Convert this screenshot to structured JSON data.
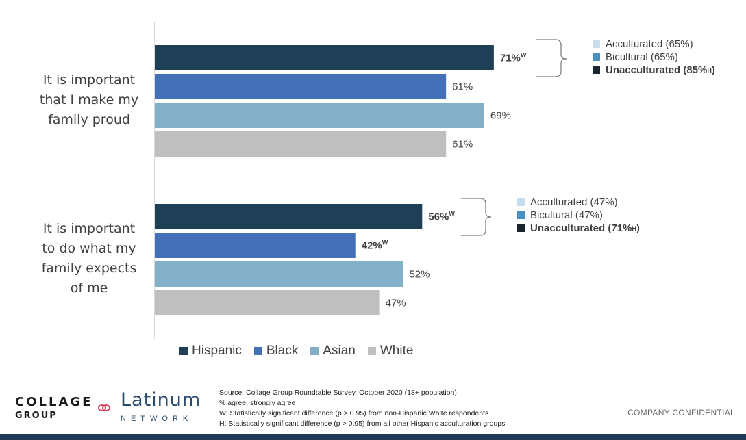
{
  "chart_data": {
    "type": "bar",
    "orientation": "horizontal",
    "categories": [
      "It is important that I make my family proud",
      "It is important to do what my family expects of me"
    ],
    "series": [
      {
        "name": "Hispanic",
        "color": "#1f3f57",
        "values": [
          71,
          56
        ],
        "labels": [
          "71%",
          "56%"
        ],
        "sup": [
          "W",
          "W"
        ],
        "bold": [
          true,
          true
        ]
      },
      {
        "name": "Black",
        "color": "#4470b7",
        "values": [
          61,
          42
        ],
        "labels": [
          "61%",
          "42%"
        ],
        "sup": [
          "",
          "W"
        ],
        "bold": [
          false,
          true
        ]
      },
      {
        "name": "Asian",
        "color": "#84afc8",
        "values": [
          69,
          52
        ],
        "labels": [
          "69%",
          "52%"
        ],
        "sup": [
          "",
          ""
        ],
        "bold": [
          false,
          false
        ]
      },
      {
        "name": "White",
        "color": "#bfbfbf",
        "values": [
          61,
          47
        ],
        "labels": [
          "61%",
          "47%"
        ],
        "sup": [
          "",
          ""
        ],
        "bold": [
          false,
          false
        ]
      }
    ],
    "xlim": [
      0,
      100
    ],
    "grid": false,
    "legend_position": "bottom"
  },
  "category_labels": {
    "q1": [
      "It is important",
      "that I make my",
      "family proud"
    ],
    "q2": [
      "It is important",
      "to do what my",
      "family expects",
      "of me"
    ]
  },
  "acculturation": [
    {
      "acculturated": "Acculturated (65%)",
      "bicultural": "Bicultural (65%)",
      "unacculturated": "Unacculturated (85%",
      "unacculturated_sup": "H",
      "unacculturated_close": ")"
    },
    {
      "acculturated": "Acculturated (47%)",
      "bicultural": "Bicultural (47%)",
      "unacculturated": "Unacculturated (71%",
      "unacculturated_sup": "H",
      "unacculturated_close": ")"
    }
  ],
  "acculturation_colors": {
    "acculturated": "#c9dcec",
    "bicultural": "#4a90c2",
    "unacculturated": "#1a2530"
  },
  "footer": {
    "notes": [
      "Source: Collage Group Roundtable Survey, October 2020 (18+ population)",
      "% agree, strongly agree",
      "W: Statistically significant difference (p > 0.95) from non-Hispanic White respondents",
      "H: Statistically significant difference (p > 0.95) from all other Hispanic acculturation groups"
    ],
    "confidential": "COMPANY CONFIDENTIAL"
  },
  "logos": {
    "collage_line1": "COLLAGE",
    "collage_line2": "GROUP",
    "latinum_line1": "Latinum",
    "latinum_line2": "NETWORK"
  }
}
